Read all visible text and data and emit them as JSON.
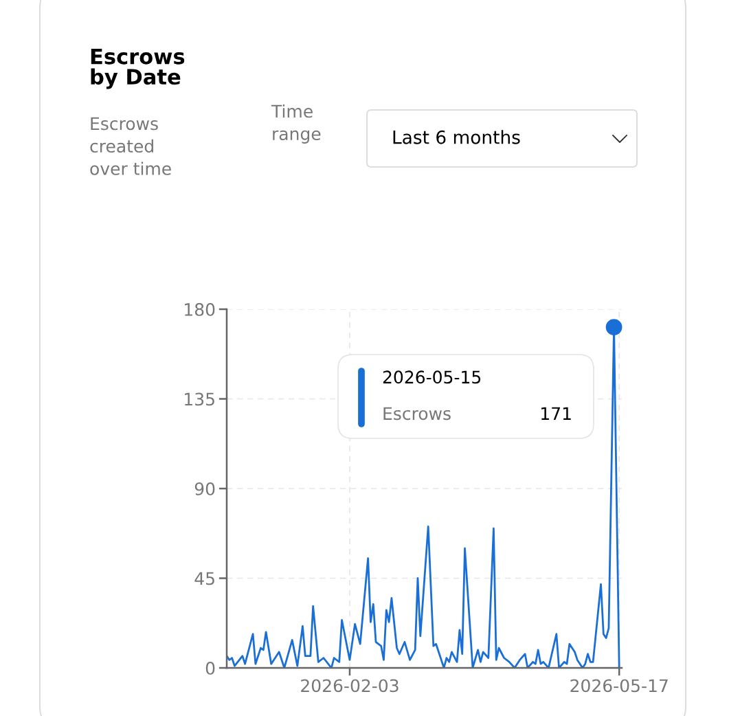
{
  "chart_data": {
    "type": "line",
    "title": "Escrows\nby Date",
    "subtitle": "Escrows\ncreated\nover time",
    "annotations": [
      "Time\nrange",
      "Last 6 months",
      "2026-05-15",
      "171"
    ],
    "x": [
      "2025-12-18",
      "2025-12-19",
      "2025-12-20",
      "2025-12-21",
      "2025-12-24",
      "2025-12-25",
      "2025-12-28",
      "2025-12-29",
      "2025-12-31",
      "2026-01-01",
      "2026-01-02",
      "2026-01-04",
      "2026-01-07",
      "2026-01-09",
      "2026-01-12",
      "2026-01-14",
      "2026-01-16",
      "2026-01-17",
      "2026-01-19",
      "2026-01-20",
      "2026-01-22",
      "2026-01-24",
      "2026-01-27",
      "2026-01-28",
      "2026-01-30",
      "2026-01-31",
      "2026-02-03",
      "2026-02-05",
      "2026-02-07",
      "2026-02-10",
      "2026-02-11",
      "2026-02-12",
      "2026-02-13",
      "2026-02-15",
      "2026-02-16",
      "2026-02-17",
      "2026-02-18",
      "2026-02-19",
      "2026-02-21",
      "2026-02-22",
      "2026-02-24",
      "2026-02-26",
      "2026-02-28",
      "2026-03-01",
      "2026-03-02",
      "2026-03-05",
      "2026-03-07",
      "2026-03-08",
      "2026-03-11",
      "2026-03-12",
      "2026-03-13",
      "2026-03-14",
      "2026-03-16",
      "2026-03-17",
      "2026-03-18",
      "2026-03-19",
      "2026-03-22",
      "2026-03-24",
      "2026-03-25",
      "2026-03-26",
      "2026-03-28",
      "2026-03-30",
      "2026-03-31",
      "2026-04-01",
      "2026-04-03",
      "2026-04-05",
      "2026-04-07",
      "2026-04-09",
      "2026-04-11",
      "2026-04-12",
      "2026-04-14",
      "2026-04-15",
      "2026-04-16",
      "2026-04-17",
      "2026-04-18",
      "2026-04-20",
      "2026-04-23",
      "2026-04-24",
      "2026-04-26",
      "2026-04-27",
      "2026-04-28",
      "2026-04-30",
      "2026-05-01",
      "2026-05-03",
      "2026-05-04",
      "2026-05-05",
      "2026-05-06",
      "2026-05-07",
      "2026-05-10",
      "2026-05-11",
      "2026-05-12",
      "2026-05-13",
      "2026-05-15",
      "2026-05-17"
    ],
    "series": [
      {
        "name": "Escrows",
        "color": "#1a6fd6",
        "values": [
          6,
          4,
          5,
          1,
          6,
          2,
          17,
          2,
          10,
          9,
          18,
          2,
          8,
          0,
          14,
          1,
          21,
          6,
          6,
          31,
          3,
          5,
          0,
          5,
          3,
          24,
          4,
          22,
          12,
          55,
          23,
          32,
          13,
          11,
          4,
          29,
          23,
          35,
          10,
          7,
          13,
          4,
          9,
          45,
          16,
          71,
          11,
          12,
          0,
          5,
          3,
          8,
          3,
          19,
          7,
          60,
          0,
          9,
          3,
          8,
          5,
          70,
          4,
          10,
          5,
          3,
          0,
          4,
          7,
          0,
          3,
          2,
          9,
          2,
          3,
          0,
          17,
          0,
          3,
          2,
          12,
          8,
          4,
          0,
          2,
          7,
          3,
          3,
          42,
          17,
          15,
          20,
          171,
          0
        ]
      },
      {
        "type": "scatter",
        "color": "#1a6fd6",
        "x": [
          "2026-05-15"
        ],
        "values": [
          171
        ],
        "marker": "circle"
      }
    ],
    "xlim": [
      "2025-12-18",
      "2026-05-18"
    ],
    "xticks": [
      "2026-02-03",
      "2026-05-17"
    ],
    "ylim": [
      0,
      180
    ],
    "yticks": [
      0,
      45,
      90,
      135,
      180
    ],
    "grid": true,
    "marker": "none",
    "line_style": "solid"
  }
}
